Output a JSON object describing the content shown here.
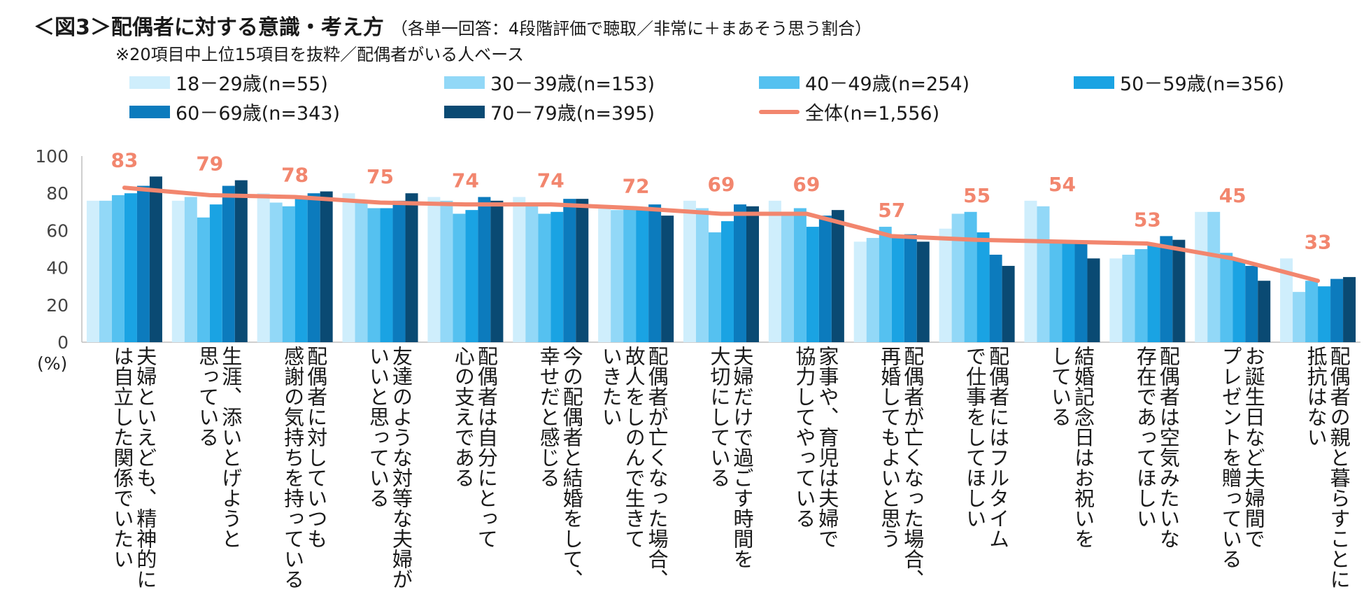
{
  "header": {
    "title": "＜図3＞配偶者に対する意識・考え方",
    "subtitle": "（各単一回答：4段階評価で聴取／非常に＋まあそう思う割合）",
    "note": "※20項目中上位15項目を抜粋／配偶者がいる人ベース"
  },
  "chart_data": {
    "type": "bar",
    "yunit": "(%)",
    "ylim": [
      0,
      100
    ],
    "yticks": [
      0,
      20,
      40,
      60,
      80,
      100
    ],
    "categories": [
      "夫婦といえども、精神的に\nは自立した関係でいたい",
      "生涯、添いとげようと\n思っている",
      "配偶者に対していつも\n感謝の気持ちを持っている",
      "友達のような対等な夫婦が\nいいと思っている",
      "配偶者は自分にとって\n心の支えである",
      "今の配偶者と結婚をして、\n幸せだと感じる",
      "配偶者が亡くなった場合、\n故人をしのんで生きて\nいきたい",
      "夫婦だけで過ごす時間を\n大切にしている",
      "家事や、育児は夫婦で\n協力してやっている",
      "配偶者が亡くなった場合、\n再婚してもよいと思う",
      "配偶者にはフルタイム\nで仕事をしてほしい",
      "結婚記念日はお祝いを\nしている",
      "配偶者は空気みたいな\n存在であってほしい",
      "お誕生日など夫婦間で\nプレゼントを贈っている",
      "配偶者の親と暮らすことに\n抵抗はない"
    ],
    "series": [
      {
        "name": "18－29歳(n=55)",
        "color": "#cfeefc",
        "values": [
          76,
          76,
          80,
          80,
          78,
          78,
          73,
          76,
          76,
          54,
          61,
          76,
          45,
          70,
          45
        ]
      },
      {
        "name": "30－39歳(n=153)",
        "color": "#92d8f7",
        "values": [
          76,
          78,
          75,
          75,
          76,
          75,
          71,
          72,
          70,
          56,
          69,
          73,
          47,
          70,
          27
        ]
      },
      {
        "name": "40－49歳(n=254)",
        "color": "#55c1f0",
        "values": [
          79,
          67,
          73,
          72,
          69,
          69,
          72,
          59,
          72,
          62,
          70,
          53,
          50,
          48,
          33
        ]
      },
      {
        "name": "50－59歳(n=356)",
        "color": "#1aa3e3",
        "values": [
          80,
          74,
          77,
          72,
          71,
          70,
          72,
          65,
          62,
          57,
          59,
          53,
          53,
          44,
          30
        ]
      },
      {
        "name": "60－69歳(n=343)",
        "color": "#0c7bbd",
        "values": [
          84,
          84,
          80,
          76,
          78,
          77,
          74,
          74,
          68,
          58,
          47,
          53,
          57,
          41,
          34
        ]
      },
      {
        "name": "70－79歳(n=395)",
        "color": "#0a4a73",
        "values": [
          89,
          87,
          81,
          80,
          76,
          77,
          68,
          73,
          71,
          54,
          41,
          45,
          55,
          33,
          35
        ]
      }
    ],
    "total": {
      "name": "全体(n=1,556)",
      "color": "#f2866e",
      "values": [
        83,
        79,
        78,
        75,
        74,
        74,
        72,
        69,
        69,
        57,
        55,
        54,
        53,
        45,
        33
      ]
    }
  }
}
